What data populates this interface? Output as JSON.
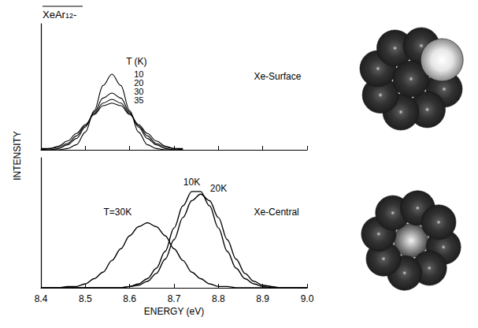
{
  "chart_data": [
    {
      "type": "line",
      "title": "XeAr12-",
      "ylabel": "INTENSITY",
      "panel_label": "Xe-Surface",
      "series_label_title": "T (K)",
      "tick_labels": false,
      "xlim": [
        8.4,
        9.0
      ],
      "xticks": [
        8.4,
        8.5,
        8.6,
        8.7,
        8.8,
        8.9,
        {
          "value": 9,
          "label": "9.0"
        }
      ],
      "ylim": [
        0,
        1
      ],
      "x": [
        8.4,
        8.42,
        8.44,
        8.46,
        8.48,
        8.5,
        8.52,
        8.54,
        8.56,
        8.58,
        8.6,
        8.62,
        8.64,
        8.66,
        8.68,
        8.7,
        8.72
      ],
      "series": [
        {
          "name": "10",
          "color": "#000000",
          "values": [
            0,
            0,
            0,
            0.01,
            0.04,
            0.14,
            0.31,
            0.51,
            0.6,
            0.51,
            0.31,
            0.14,
            0.04,
            0.01,
            0,
            0,
            0
          ]
        },
        {
          "name": "20",
          "color": "#000000",
          "values": [
            0,
            0,
            0.01,
            0.04,
            0.09,
            0.18,
            0.3,
            0.41,
            0.45,
            0.41,
            0.3,
            0.18,
            0.09,
            0.04,
            0.01,
            0,
            0
          ]
        },
        {
          "name": "30",
          "color": "#000000",
          "values": [
            0,
            0.01,
            0.02,
            0.05,
            0.11,
            0.19,
            0.29,
            0.37,
            0.4,
            0.37,
            0.29,
            0.19,
            0.11,
            0.05,
            0.02,
            0.01,
            0
          ]
        },
        {
          "name": "35",
          "color": "#000000",
          "values": [
            0.01,
            0.01,
            0.03,
            0.07,
            0.13,
            0.2,
            0.28,
            0.35,
            0.37,
            0.35,
            0.28,
            0.2,
            0.13,
            0.07,
            0.03,
            0.01,
            0.01
          ]
        }
      ]
    },
    {
      "type": "line",
      "panel_label": "Xe-Central",
      "xlabel": "ENERGY (eV)",
      "tick_labels": "x",
      "xlim": [
        8.4,
        9.0
      ],
      "xticks": [
        8.4,
        8.5,
        8.6,
        8.7,
        8.8,
        8.9,
        {
          "value": 9,
          "label": "9.0"
        }
      ],
      "ylim": [
        0,
        1
      ],
      "x": [
        8.4,
        8.42,
        8.44,
        8.46,
        8.48,
        8.5,
        8.52,
        8.54,
        8.56,
        8.58,
        8.6,
        8.62,
        8.64,
        8.66,
        8.68,
        8.7,
        8.72,
        8.74,
        8.76,
        8.78,
        8.8,
        8.82,
        8.84,
        8.86,
        8.88,
        8.9,
        8.92,
        8.94,
        8.96,
        8.98,
        9.0
      ],
      "series": [
        {
          "name": "10K",
          "color": "#000000",
          "values": [
            0,
            0,
            0,
            0,
            0,
            0,
            0,
            0,
            0,
            0,
            0.01,
            0.03,
            0.07,
            0.15,
            0.28,
            0.46,
            0.63,
            0.74,
            0.74,
            0.63,
            0.46,
            0.28,
            0.15,
            0.07,
            0.03,
            0.01,
            0,
            0,
            0,
            0,
            0
          ]
        },
        {
          "name": "20K",
          "color": "#000000",
          "values": [
            0,
            0,
            0,
            0,
            0,
            0,
            0,
            0,
            0,
            0,
            0.01,
            0.02,
            0.05,
            0.11,
            0.22,
            0.37,
            0.54,
            0.67,
            0.72,
            0.67,
            0.54,
            0.37,
            0.22,
            0.11,
            0.05,
            0.02,
            0.01,
            0,
            0,
            0,
            0
          ]
        },
        {
          "name": "T=30K",
          "color": "#000000",
          "values": [
            0,
            0,
            0,
            0.01,
            0.01,
            0.03,
            0.07,
            0.12,
            0.21,
            0.3,
            0.4,
            0.47,
            0.5,
            0.47,
            0.4,
            0.3,
            0.21,
            0.12,
            0.07,
            0.03,
            0.01,
            0.01,
            0,
            0,
            0,
            0,
            0,
            0,
            0,
            0,
            0
          ]
        }
      ]
    }
  ]
}
